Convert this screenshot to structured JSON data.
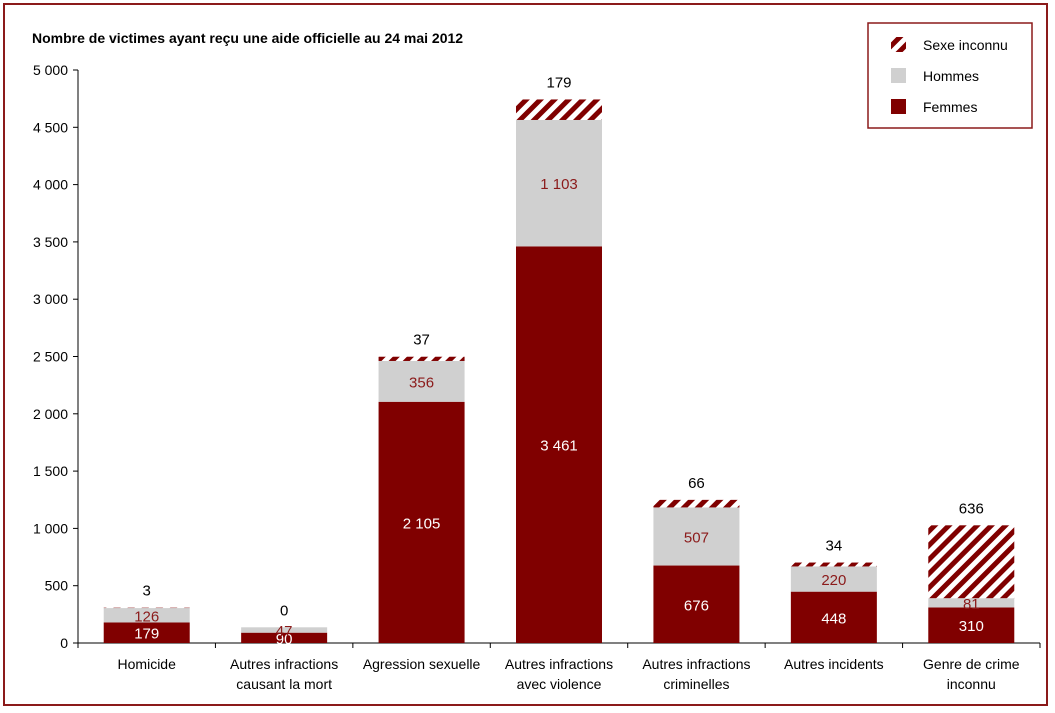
{
  "chart_data": {
    "type": "bar",
    "stacked": true,
    "title": "Nombre de victimes ayant reçu une aide officielle au 24 mai 2012",
    "ylim": [
      0,
      5000
    ],
    "yticks": [
      "0",
      "500",
      "1 000",
      "1 500",
      "2 000",
      "2 500",
      "3 000",
      "3 500",
      "4 000",
      "4 500",
      "5 000"
    ],
    "categories": [
      [
        "Homicide"
      ],
      [
        "Autres infractions",
        "causant la mort"
      ],
      [
        "Agression sexuelle"
      ],
      [
        "Autres infractions",
        "avec violence"
      ],
      [
        "Autres infractions",
        "criminelles"
      ],
      [
        "Autres incidents"
      ],
      [
        "Genre de crime",
        "inconnu"
      ]
    ],
    "series": [
      {
        "name": "Femmes",
        "color": "#800000",
        "values": [
          179,
          90,
          2105,
          3461,
          676,
          448,
          310
        ],
        "labels": [
          "179",
          "90",
          "2 105",
          "3 461",
          "676",
          "448",
          "310"
        ]
      },
      {
        "name": "Hommes",
        "color": "#d0d0d0",
        "values": [
          126,
          47,
          356,
          1103,
          507,
          220,
          81
        ],
        "labels": [
          "126",
          "47",
          "356",
          "1 103",
          "507",
          "220",
          "81"
        ]
      },
      {
        "name": "Sexe inconnu",
        "color": "#800000",
        "pattern": "hatched",
        "values": [
          3,
          0,
          37,
          179,
          66,
          34,
          636
        ],
        "labels": [
          "3",
          "0",
          "37",
          "179",
          "66",
          "34",
          "636"
        ]
      }
    ],
    "legend": {
      "position": "top-right",
      "order": [
        "Sexe inconnu",
        "Hommes",
        "Femmes"
      ]
    },
    "grid": false
  }
}
